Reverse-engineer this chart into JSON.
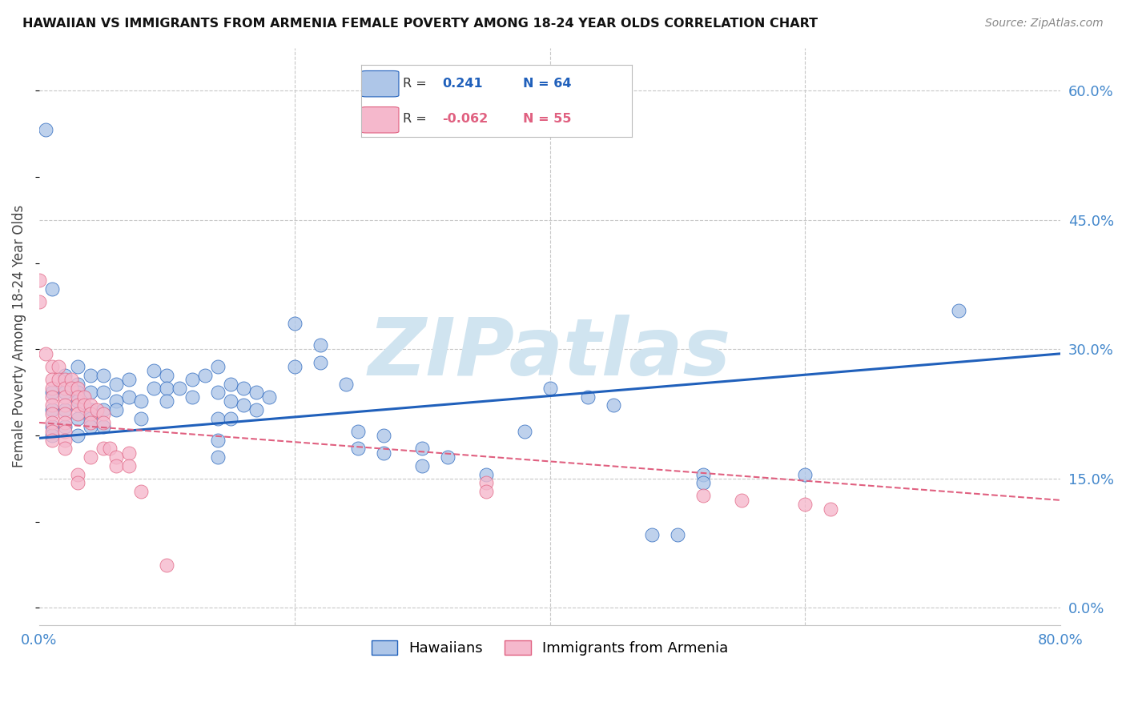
{
  "title": "HAWAIIAN VS IMMIGRANTS FROM ARMENIA FEMALE POVERTY AMONG 18-24 YEAR OLDS CORRELATION CHART",
  "source": "Source: ZipAtlas.com",
  "ylabel": "Female Poverty Among 18-24 Year Olds",
  "xlim": [
    0.0,
    0.8
  ],
  "ylim": [
    -0.02,
    0.65
  ],
  "ytick_vals": [
    0.0,
    0.15,
    0.3,
    0.45,
    0.6
  ],
  "ytick_labels": [
    "0.0%",
    "15.0%",
    "30.0%",
    "45.0%",
    "60.0%"
  ],
  "xtick_vals": [
    0.0,
    0.2,
    0.4,
    0.6,
    0.8
  ],
  "xtick_labels": [
    "0.0%",
    "",
    "",
    "",
    "80.0%"
  ],
  "background_color": "#ffffff",
  "grid_color": "#c8c8c8",
  "hawaiian_color": "#aec6e8",
  "armenian_color": "#f5b8cc",
  "hawaiian_line_color": "#2060bb",
  "armenian_line_color": "#e06080",
  "watermark_color": "#d0e4f0",
  "hawaiian_scatter": [
    [
      0.005,
      0.555
    ],
    [
      0.01,
      0.37
    ],
    [
      0.01,
      0.25
    ],
    [
      0.01,
      0.23
    ],
    [
      0.01,
      0.21
    ],
    [
      0.01,
      0.2
    ],
    [
      0.02,
      0.27
    ],
    [
      0.02,
      0.25
    ],
    [
      0.02,
      0.23
    ],
    [
      0.02,
      0.21
    ],
    [
      0.03,
      0.28
    ],
    [
      0.03,
      0.26
    ],
    [
      0.03,
      0.25
    ],
    [
      0.03,
      0.24
    ],
    [
      0.03,
      0.22
    ],
    [
      0.03,
      0.2
    ],
    [
      0.04,
      0.27
    ],
    [
      0.04,
      0.25
    ],
    [
      0.04,
      0.23
    ],
    [
      0.04,
      0.22
    ],
    [
      0.04,
      0.21
    ],
    [
      0.05,
      0.27
    ],
    [
      0.05,
      0.25
    ],
    [
      0.05,
      0.23
    ],
    [
      0.05,
      0.21
    ],
    [
      0.06,
      0.26
    ],
    [
      0.06,
      0.24
    ],
    [
      0.06,
      0.23
    ],
    [
      0.07,
      0.265
    ],
    [
      0.07,
      0.245
    ],
    [
      0.08,
      0.24
    ],
    [
      0.08,
      0.22
    ],
    [
      0.09,
      0.275
    ],
    [
      0.09,
      0.255
    ],
    [
      0.1,
      0.27
    ],
    [
      0.1,
      0.255
    ],
    [
      0.1,
      0.24
    ],
    [
      0.11,
      0.255
    ],
    [
      0.12,
      0.265
    ],
    [
      0.12,
      0.245
    ],
    [
      0.13,
      0.27
    ],
    [
      0.14,
      0.28
    ],
    [
      0.14,
      0.25
    ],
    [
      0.14,
      0.22
    ],
    [
      0.14,
      0.195
    ],
    [
      0.14,
      0.175
    ],
    [
      0.15,
      0.26
    ],
    [
      0.15,
      0.24
    ],
    [
      0.15,
      0.22
    ],
    [
      0.16,
      0.255
    ],
    [
      0.16,
      0.235
    ],
    [
      0.17,
      0.25
    ],
    [
      0.17,
      0.23
    ],
    [
      0.18,
      0.245
    ],
    [
      0.2,
      0.33
    ],
    [
      0.2,
      0.28
    ],
    [
      0.22,
      0.305
    ],
    [
      0.22,
      0.285
    ],
    [
      0.24,
      0.26
    ],
    [
      0.25,
      0.205
    ],
    [
      0.25,
      0.185
    ],
    [
      0.27,
      0.2
    ],
    [
      0.27,
      0.18
    ],
    [
      0.3,
      0.185
    ],
    [
      0.3,
      0.165
    ],
    [
      0.32,
      0.175
    ],
    [
      0.35,
      0.155
    ],
    [
      0.38,
      0.205
    ],
    [
      0.4,
      0.255
    ],
    [
      0.43,
      0.245
    ],
    [
      0.45,
      0.235
    ],
    [
      0.48,
      0.085
    ],
    [
      0.5,
      0.085
    ],
    [
      0.52,
      0.155
    ],
    [
      0.52,
      0.145
    ],
    [
      0.6,
      0.155
    ],
    [
      0.72,
      0.345
    ]
  ],
  "armenian_scatter": [
    [
      0.0,
      0.38
    ],
    [
      0.0,
      0.355
    ],
    [
      0.005,
      0.295
    ],
    [
      0.01,
      0.28
    ],
    [
      0.01,
      0.265
    ],
    [
      0.01,
      0.255
    ],
    [
      0.01,
      0.245
    ],
    [
      0.01,
      0.235
    ],
    [
      0.01,
      0.225
    ],
    [
      0.01,
      0.215
    ],
    [
      0.01,
      0.205
    ],
    [
      0.01,
      0.195
    ],
    [
      0.015,
      0.28
    ],
    [
      0.015,
      0.265
    ],
    [
      0.02,
      0.265
    ],
    [
      0.02,
      0.255
    ],
    [
      0.02,
      0.245
    ],
    [
      0.02,
      0.235
    ],
    [
      0.02,
      0.225
    ],
    [
      0.02,
      0.215
    ],
    [
      0.02,
      0.205
    ],
    [
      0.02,
      0.195
    ],
    [
      0.02,
      0.185
    ],
    [
      0.025,
      0.265
    ],
    [
      0.025,
      0.255
    ],
    [
      0.03,
      0.255
    ],
    [
      0.03,
      0.245
    ],
    [
      0.03,
      0.235
    ],
    [
      0.03,
      0.225
    ],
    [
      0.03,
      0.155
    ],
    [
      0.03,
      0.145
    ],
    [
      0.035,
      0.245
    ],
    [
      0.035,
      0.235
    ],
    [
      0.04,
      0.235
    ],
    [
      0.04,
      0.225
    ],
    [
      0.04,
      0.215
    ],
    [
      0.04,
      0.175
    ],
    [
      0.045,
      0.23
    ],
    [
      0.05,
      0.225
    ],
    [
      0.05,
      0.215
    ],
    [
      0.05,
      0.185
    ],
    [
      0.055,
      0.185
    ],
    [
      0.06,
      0.175
    ],
    [
      0.06,
      0.165
    ],
    [
      0.07,
      0.18
    ],
    [
      0.07,
      0.165
    ],
    [
      0.08,
      0.135
    ],
    [
      0.1,
      0.05
    ],
    [
      0.35,
      0.145
    ],
    [
      0.35,
      0.135
    ],
    [
      0.52,
      0.13
    ],
    [
      0.55,
      0.125
    ],
    [
      0.6,
      0.12
    ],
    [
      0.62,
      0.115
    ]
  ]
}
